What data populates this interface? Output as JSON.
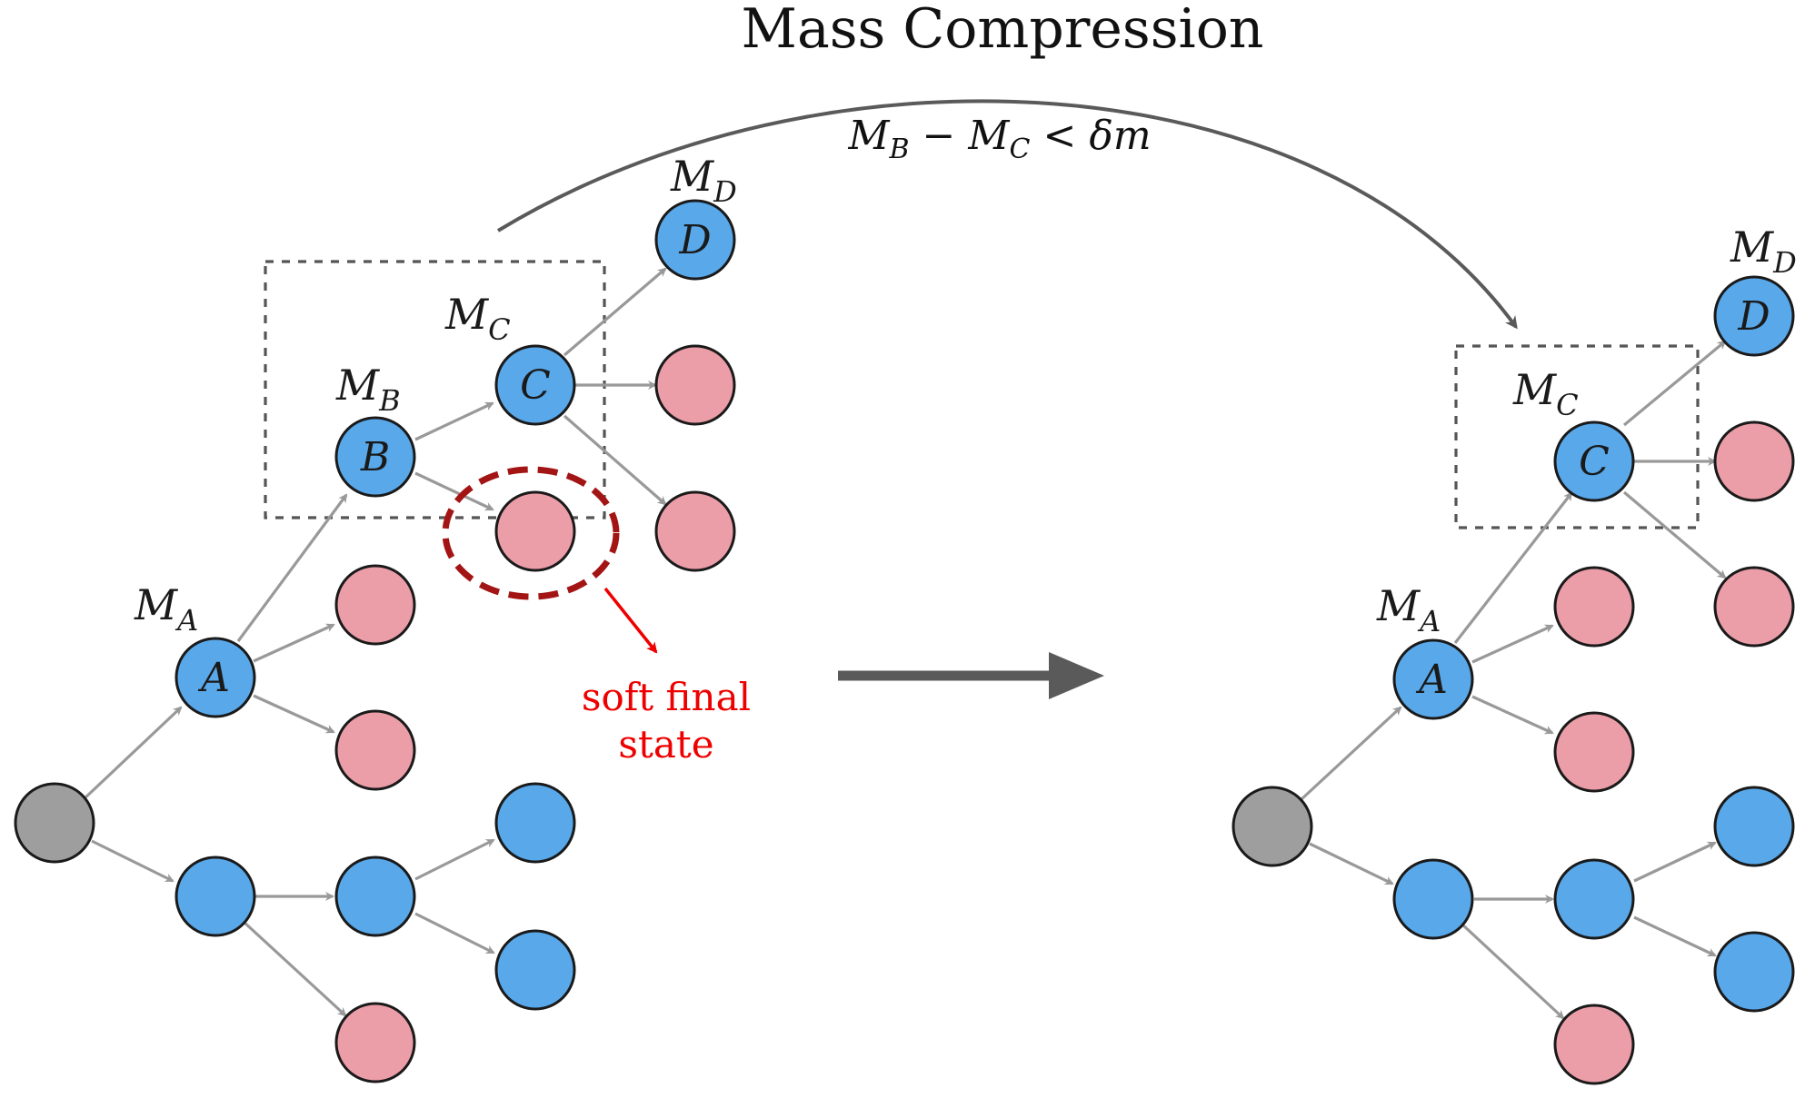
{
  "title": "Mass Compression",
  "condition": {
    "lhs_var": "M",
    "lhs_sub": "B",
    "minus": "−",
    "rhs_var": "M",
    "rhs_sub": "C",
    "lt": "<",
    "delta": "δm"
  },
  "annotation": {
    "line1": "soft final",
    "line2": "state"
  },
  "node_labels": {
    "A": "A",
    "B": "B",
    "C": "C",
    "D": "D"
  },
  "mass_labels": {
    "M": "M",
    "A_sub": "A",
    "B_sub": "B",
    "C_sub": "C",
    "D_sub": "D"
  },
  "colors": {
    "hard_node": "#58a8ea",
    "soft_node": "#ec9ea8",
    "root_node": "#9e9e9e",
    "edge": "#999999",
    "big_arrow": "#5a5a5a",
    "soft_circle": "#a31515",
    "annotation": "#ee0000"
  }
}
